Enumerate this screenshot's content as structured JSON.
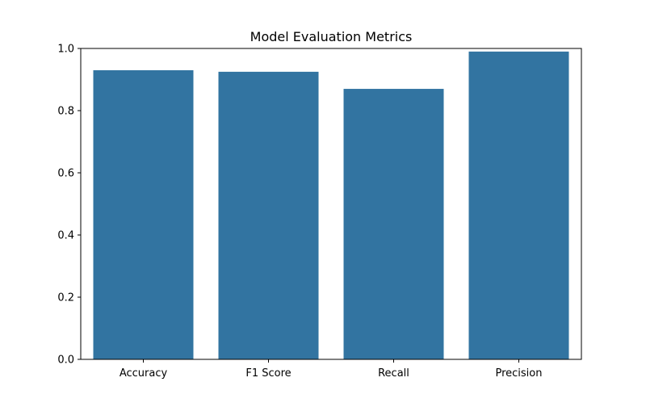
{
  "chart_data": {
    "type": "bar",
    "title": "Model Evaluation Metrics",
    "xlabel": "",
    "ylabel": "",
    "categories": [
      "Accuracy",
      "F1 Score",
      "Recall",
      "Precision"
    ],
    "values": [
      0.93,
      0.925,
      0.87,
      0.99
    ],
    "ylim": [
      0,
      1.0
    ],
    "yticks": [
      0.0,
      0.2,
      0.4,
      0.6,
      0.8,
      1.0
    ],
    "ytick_labels": [
      "0.0",
      "0.2",
      "0.4",
      "0.6",
      "0.8",
      "1.0"
    ],
    "grid": false,
    "bar_color": "#3274a1",
    "axis_color": "#000000"
  }
}
